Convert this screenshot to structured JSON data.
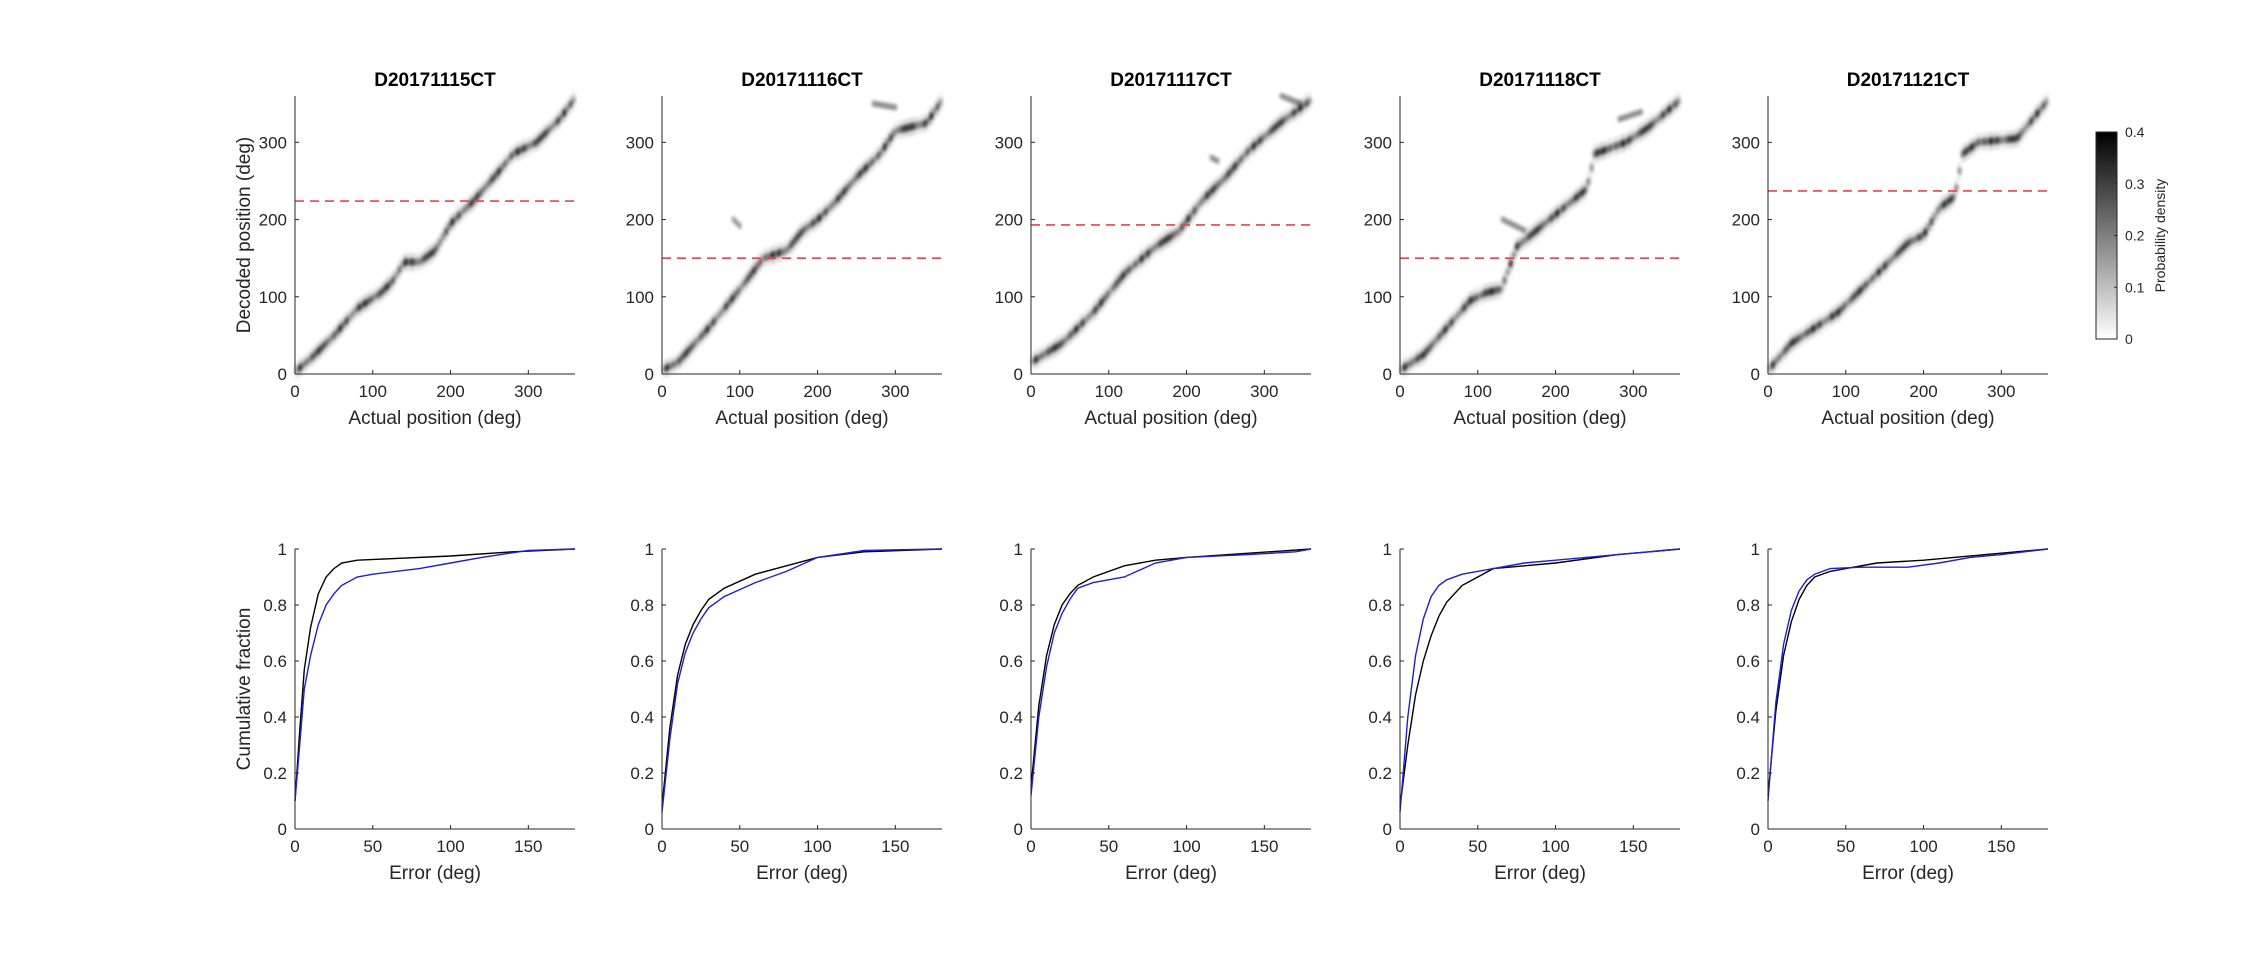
{
  "figure": {
    "colorbar": {
      "label": "Probability density",
      "range": [
        0,
        0.4
      ],
      "ticks": [
        0,
        0.1,
        0.2,
        0.3,
        0.4
      ],
      "colormap": [
        "#ffffff",
        "#000000"
      ]
    },
    "colors": {
      "threshold_line": "#e8434f",
      "series_black": "#000000",
      "series_blue": "#1f1fd0",
      "axis": "#262626"
    }
  },
  "chart_data": [
    {
      "type": "heatmap",
      "title": "D20171115CT",
      "xlabel": "Actual position (deg)",
      "ylabel": "Decoded position (deg)",
      "xlim": [
        0,
        360
      ],
      "ylim": [
        0,
        360
      ],
      "xticks": [
        0,
        100,
        200,
        300
      ],
      "yticks": [
        0,
        100,
        200,
        300
      ],
      "threshold_y": 224,
      "ridge": [
        [
          0,
          3
        ],
        [
          20,
          20
        ],
        [
          50,
          50
        ],
        [
          80,
          85
        ],
        [
          110,
          105
        ],
        [
          125,
          120
        ],
        [
          140,
          145
        ],
        [
          160,
          145
        ],
        [
          180,
          160
        ],
        [
          200,
          195
        ],
        [
          230,
          225
        ],
        [
          260,
          260
        ],
        [
          280,
          285
        ],
        [
          310,
          300
        ],
        [
          340,
          330
        ],
        [
          358,
          355
        ]
      ],
      "spurs": []
    },
    {
      "type": "heatmap",
      "title": "D20171116CT",
      "xlabel": "Actual position (deg)",
      "ylabel": "",
      "xlim": [
        0,
        360
      ],
      "ylim": [
        0,
        360
      ],
      "xticks": [
        0,
        100,
        200,
        300
      ],
      "yticks": [
        0,
        100,
        200,
        300
      ],
      "threshold_y": 150,
      "ridge": [
        [
          0,
          5
        ],
        [
          20,
          15
        ],
        [
          60,
          60
        ],
        [
          100,
          110
        ],
        [
          130,
          150
        ],
        [
          160,
          160
        ],
        [
          180,
          185
        ],
        [
          200,
          200
        ],
        [
          220,
          220
        ],
        [
          250,
          255
        ],
        [
          280,
          285
        ],
        [
          300,
          315
        ],
        [
          340,
          325
        ],
        [
          360,
          355
        ]
      ],
      "spurs": [
        [
          [
            90,
            100
          ],
          [
            200,
            190
          ]
        ],
        [
          [
            270,
            300
          ],
          [
            350,
            345
          ]
        ]
      ]
    },
    {
      "type": "heatmap",
      "title": "D20171117CT",
      "xlabel": "Actual position (deg)",
      "ylabel": "",
      "xlim": [
        0,
        360
      ],
      "ylim": [
        0,
        360
      ],
      "xticks": [
        0,
        100,
        200,
        300
      ],
      "yticks": [
        0,
        100,
        200,
        300
      ],
      "threshold_y": 193,
      "ridge": [
        [
          0,
          15
        ],
        [
          40,
          40
        ],
        [
          80,
          80
        ],
        [
          120,
          130
        ],
        [
          160,
          165
        ],
        [
          190,
          185
        ],
        [
          220,
          225
        ],
        [
          250,
          255
        ],
        [
          280,
          290
        ],
        [
          320,
          325
        ],
        [
          360,
          355
        ]
      ],
      "spurs": [
        [
          [
            230,
            240
          ],
          [
            280,
            275
          ]
        ],
        [
          [
            320,
            345
          ],
          [
            360,
            350
          ]
        ]
      ]
    },
    {
      "type": "heatmap",
      "title": "D20171118CT",
      "xlabel": "Actual position (deg)",
      "ylabel": "",
      "xlim": [
        0,
        360
      ],
      "ylim": [
        0,
        360
      ],
      "xticks": [
        0,
        100,
        200,
        300
      ],
      "yticks": [
        0,
        100,
        200,
        300
      ],
      "threshold_y": 150,
      "ridge": [
        [
          0,
          5
        ],
        [
          30,
          25
        ],
        [
          60,
          60
        ],
        [
          90,
          95
        ],
        [
          110,
          105
        ],
        [
          130,
          110
        ],
        [
          150,
          165
        ],
        [
          180,
          190
        ],
        [
          210,
          215
        ],
        [
          240,
          240
        ],
        [
          250,
          285
        ],
        [
          290,
          300
        ],
        [
          320,
          320
        ],
        [
          360,
          355
        ]
      ],
      "spurs": [
        [
          [
            130,
            160
          ],
          [
            200,
            185
          ]
        ],
        [
          [
            280,
            310
          ],
          [
            330,
            340
          ]
        ]
      ]
    },
    {
      "type": "heatmap",
      "title": "D20171121CT",
      "xlabel": "Actual position (deg)",
      "ylabel": "",
      "xlim": [
        0,
        360
      ],
      "ylim": [
        0,
        360
      ],
      "xticks": [
        0,
        100,
        200,
        300
      ],
      "yticks": [
        0,
        100,
        200,
        300
      ],
      "threshold_y": 237,
      "ridge": [
        [
          0,
          5
        ],
        [
          30,
          40
        ],
        [
          60,
          60
        ],
        [
          90,
          80
        ],
        [
          120,
          110
        ],
        [
          150,
          140
        ],
        [
          180,
          170
        ],
        [
          200,
          180
        ],
        [
          220,
          215
        ],
        [
          240,
          230
        ],
        [
          250,
          285
        ],
        [
          270,
          300
        ],
        [
          320,
          305
        ],
        [
          340,
          330
        ],
        [
          360,
          355
        ]
      ],
      "spurs": []
    },
    {
      "type": "line",
      "xlabel": "Error (deg)",
      "ylabel": "Cumulative fraction",
      "xlim": [
        0,
        180
      ],
      "ylim": [
        0,
        1
      ],
      "xticks": [
        0,
        50,
        100,
        150
      ],
      "yticks": [
        0,
        0.2,
        0.4,
        0.6,
        0.8,
        1
      ],
      "series": [
        {
          "color": "#000000",
          "x": [
            0,
            3,
            6,
            10,
            15,
            20,
            25,
            30,
            40,
            60,
            100,
            140,
            180
          ],
          "y": [
            0.1,
            0.35,
            0.57,
            0.72,
            0.84,
            0.9,
            0.93,
            0.95,
            0.96,
            0.965,
            0.975,
            0.99,
            1.0
          ]
        },
        {
          "color": "#1f1fd0",
          "x": [
            0,
            3,
            6,
            10,
            15,
            20,
            25,
            30,
            40,
            50,
            80,
            100,
            120,
            150,
            180
          ],
          "y": [
            0.1,
            0.3,
            0.5,
            0.62,
            0.73,
            0.8,
            0.84,
            0.87,
            0.9,
            0.91,
            0.93,
            0.95,
            0.97,
            0.995,
            1.0
          ]
        }
      ]
    },
    {
      "type": "line",
      "xlabel": "Error (deg)",
      "ylabel": "",
      "xlim": [
        0,
        180
      ],
      "ylim": [
        0,
        1
      ],
      "xticks": [
        0,
        50,
        100,
        150
      ],
      "yticks": [
        0,
        0.2,
        0.4,
        0.6,
        0.8,
        1
      ],
      "series": [
        {
          "color": "#000000",
          "x": [
            0,
            5,
            10,
            15,
            20,
            25,
            30,
            40,
            60,
            80,
            100,
            130,
            180
          ],
          "y": [
            0.08,
            0.36,
            0.55,
            0.66,
            0.73,
            0.78,
            0.82,
            0.86,
            0.91,
            0.94,
            0.97,
            0.99,
            1.0
          ]
        },
        {
          "color": "#1f1fd0",
          "x": [
            0,
            5,
            10,
            15,
            20,
            25,
            30,
            40,
            60,
            80,
            100,
            130,
            180
          ],
          "y": [
            0.06,
            0.32,
            0.52,
            0.63,
            0.7,
            0.75,
            0.79,
            0.83,
            0.88,
            0.92,
            0.97,
            0.995,
            1.0
          ]
        }
      ]
    },
    {
      "type": "line",
      "xlabel": "Error (deg)",
      "ylabel": "",
      "xlim": [
        0,
        180
      ],
      "ylim": [
        0,
        1
      ],
      "xticks": [
        0,
        50,
        100,
        150
      ],
      "yticks": [
        0,
        0.2,
        0.4,
        0.6,
        0.8,
        1
      ],
      "series": [
        {
          "color": "#000000",
          "x": [
            0,
            5,
            10,
            15,
            20,
            25,
            30,
            40,
            60,
            80,
            100,
            140,
            180
          ],
          "y": [
            0.15,
            0.44,
            0.62,
            0.73,
            0.8,
            0.84,
            0.87,
            0.9,
            0.94,
            0.96,
            0.97,
            0.985,
            1.0
          ]
        },
        {
          "color": "#1f1fd0",
          "x": [
            0,
            5,
            10,
            15,
            20,
            25,
            30,
            40,
            60,
            80,
            100,
            140,
            170,
            180
          ],
          "y": [
            0.12,
            0.4,
            0.58,
            0.7,
            0.77,
            0.82,
            0.86,
            0.88,
            0.9,
            0.95,
            0.97,
            0.98,
            0.99,
            1.0
          ]
        }
      ]
    },
    {
      "type": "line",
      "xlabel": "Error (deg)",
      "ylabel": "",
      "xlim": [
        0,
        180
      ],
      "ylim": [
        0,
        1
      ],
      "xticks": [
        0,
        50,
        100,
        150
      ],
      "yticks": [
        0,
        0.2,
        0.4,
        0.6,
        0.8,
        1
      ],
      "series": [
        {
          "color": "#000000",
          "x": [
            0,
            5,
            10,
            15,
            20,
            25,
            30,
            40,
            50,
            60,
            80,
            100,
            140,
            180
          ],
          "y": [
            0.08,
            0.3,
            0.48,
            0.6,
            0.69,
            0.76,
            0.81,
            0.87,
            0.9,
            0.93,
            0.94,
            0.95,
            0.98,
            1.0
          ]
        },
        {
          "color": "#1f1fd0",
          "x": [
            0,
            5,
            10,
            15,
            20,
            25,
            30,
            40,
            60,
            80,
            100,
            140,
            180
          ],
          "y": [
            0.06,
            0.4,
            0.62,
            0.75,
            0.83,
            0.87,
            0.89,
            0.91,
            0.93,
            0.95,
            0.96,
            0.98,
            1.0
          ]
        }
      ]
    },
    {
      "type": "line",
      "xlabel": "Error (deg)",
      "ylabel": "",
      "xlim": [
        0,
        180
      ],
      "ylim": [
        0,
        1
      ],
      "xticks": [
        0,
        50,
        100,
        150
      ],
      "yticks": [
        0,
        0.2,
        0.4,
        0.6,
        0.8,
        1
      ],
      "series": [
        {
          "color": "#000000",
          "x": [
            0,
            5,
            10,
            15,
            20,
            25,
            30,
            40,
            50,
            70,
            100,
            140,
            180
          ],
          "y": [
            0.12,
            0.42,
            0.62,
            0.74,
            0.82,
            0.87,
            0.9,
            0.92,
            0.93,
            0.95,
            0.96,
            0.98,
            1.0
          ]
        },
        {
          "color": "#1f1fd0",
          "x": [
            0,
            5,
            10,
            15,
            20,
            25,
            30,
            40,
            60,
            90,
            110,
            130,
            150,
            180
          ],
          "y": [
            0.1,
            0.45,
            0.66,
            0.78,
            0.85,
            0.89,
            0.91,
            0.93,
            0.935,
            0.935,
            0.95,
            0.97,
            0.98,
            1.0
          ]
        }
      ]
    }
  ]
}
